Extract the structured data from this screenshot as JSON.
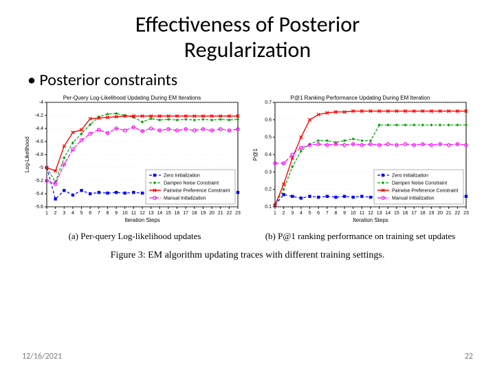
{
  "title_line1": "Effectiveness of Posterior",
  "title_line2": "Regularization",
  "bullet_text": "Posterior constraints",
  "footer_date": "12/16/2021",
  "footer_page": "22",
  "figure_caption": "Figure 3: EM algorithm updating traces with different training settings.",
  "subcaption_a": "(a) Per-query Log-likelihood updates",
  "subcaption_b": "(b) P@1 ranking performance on training set updates",
  "chart_left": {
    "type": "line",
    "title": "Per-Query Log-Likelihood Updating During EM Iterations",
    "xlabel": "Iteration Steps",
    "ylabel": "Log-Likelihood",
    "xlim": [
      1,
      23
    ],
    "ylim": [
      -5.6,
      -4.0
    ],
    "xticks": [
      1,
      2,
      3,
      4,
      5,
      6,
      7,
      8,
      9,
      10,
      11,
      12,
      13,
      14,
      15,
      16,
      17,
      18,
      19,
      20,
      21,
      22,
      23
    ],
    "yticks": [
      -5.6,
      -5.4,
      -5.2,
      -5.0,
      -4.8,
      -4.6,
      -4.4,
      -4.2,
      -4.0
    ],
    "background_color": "#ffffff",
    "grid_color": "#d0d0d0",
    "legend_pos": "bottom-right",
    "series": [
      {
        "name": "Zero Initialization",
        "color": "#0000ff",
        "marker": "square",
        "dash": "4 3",
        "width": 1.2,
        "y": [
          -5.0,
          -5.48,
          -5.35,
          -5.42,
          -5.35,
          -5.4,
          -5.38,
          -5.39,
          -5.38,
          -5.39,
          -5.38,
          -5.39,
          -5.38,
          -5.39,
          -5.38,
          -5.39,
          -5.38,
          -5.39,
          -5.38,
          -5.39,
          -5.38,
          -5.39,
          -5.38
        ]
      },
      {
        "name": "Dampen Noise Constraint",
        "color": "#00a000",
        "marker": "diamond",
        "dash": "4 2",
        "width": 1.2,
        "y": [
          -5.0,
          -5.22,
          -4.85,
          -4.62,
          -4.48,
          -4.34,
          -4.22,
          -4.18,
          -4.17,
          -4.2,
          -4.23,
          -4.3,
          -4.25,
          -4.27,
          -4.26,
          -4.27,
          -4.26,
          -4.27,
          -4.26,
          -4.27,
          -4.26,
          -4.27,
          -4.26
        ]
      },
      {
        "name": "Pairwise Preference Constraint",
        "color": "#ff0000",
        "marker": "x",
        "dash": "",
        "width": 1.4,
        "y": [
          -5.0,
          -5.05,
          -4.67,
          -4.46,
          -4.42,
          -4.25,
          -4.24,
          -4.23,
          -4.22,
          -4.21,
          -4.21,
          -4.21,
          -4.21,
          -4.21,
          -4.21,
          -4.21,
          -4.21,
          -4.21,
          -4.21,
          -4.21,
          -4.21,
          -4.21,
          -4.21
        ]
      },
      {
        "name": "Manual Initialization",
        "color": "#ff00ff",
        "marker": "circle",
        "dash": "6 2",
        "width": 1.2,
        "y": [
          -5.2,
          -5.25,
          -4.95,
          -4.72,
          -4.58,
          -4.48,
          -4.42,
          -4.47,
          -4.4,
          -4.43,
          -4.38,
          -4.44,
          -4.4,
          -4.43,
          -4.41,
          -4.43,
          -4.41,
          -4.43,
          -4.41,
          -4.43,
          -4.41,
          -4.43,
          -4.41
        ]
      }
    ]
  },
  "chart_right": {
    "type": "line",
    "title": "P@1 Ranking Performance Updating During EM Iteration",
    "xlabel": "Iteration Steps",
    "ylabel": "P@1",
    "xlim": [
      1,
      23
    ],
    "ylim": [
      0.1,
      0.7
    ],
    "xticks": [
      1,
      2,
      3,
      4,
      5,
      6,
      7,
      8,
      9,
      10,
      11,
      12,
      13,
      14,
      15,
      16,
      17,
      18,
      19,
      20,
      21,
      22,
      23
    ],
    "yticks": [
      0.1,
      0.2,
      0.3,
      0.4,
      0.5,
      0.6,
      0.7
    ],
    "background_color": "#ffffff",
    "grid_color": "#d0d0d0",
    "legend_pos": "bottom-right",
    "series": [
      {
        "name": "Zero Initialization",
        "color": "#0000ff",
        "marker": "square",
        "dash": "4 3",
        "width": 1.2,
        "y": [
          0.11,
          0.17,
          0.16,
          0.15,
          0.16,
          0.155,
          0.16,
          0.155,
          0.16,
          0.155,
          0.16,
          0.155,
          0.16,
          0.155,
          0.16,
          0.155,
          0.16,
          0.155,
          0.16,
          0.155,
          0.16,
          0.155,
          0.16
        ]
      },
      {
        "name": "Dampen Noise Constraint",
        "color": "#00a000",
        "marker": "diamond",
        "dash": "4 2",
        "width": 1.2,
        "y": [
          0.11,
          0.2,
          0.33,
          0.42,
          0.46,
          0.48,
          0.48,
          0.47,
          0.48,
          0.49,
          0.48,
          0.48,
          0.57,
          0.57,
          0.57,
          0.57,
          0.57,
          0.57,
          0.57,
          0.57,
          0.57,
          0.57,
          0.57
        ]
      },
      {
        "name": "Pairwise Preference Constraint",
        "color": "#ff0000",
        "marker": "x",
        "dash": "",
        "width": 1.4,
        "y": [
          0.11,
          0.23,
          0.38,
          0.5,
          0.6,
          0.63,
          0.64,
          0.645,
          0.645,
          0.65,
          0.65,
          0.65,
          0.65,
          0.65,
          0.65,
          0.65,
          0.65,
          0.65,
          0.65,
          0.65,
          0.65,
          0.65,
          0.65
        ]
      },
      {
        "name": "Manual Initialization",
        "color": "#ff00ff",
        "marker": "circle",
        "dash": "6 2",
        "width": 1.2,
        "y": [
          0.35,
          0.35,
          0.4,
          0.44,
          0.455,
          0.46,
          0.455,
          0.46,
          0.455,
          0.46,
          0.455,
          0.46,
          0.455,
          0.46,
          0.455,
          0.46,
          0.455,
          0.46,
          0.455,
          0.46,
          0.455,
          0.46,
          0.455
        ]
      }
    ]
  }
}
